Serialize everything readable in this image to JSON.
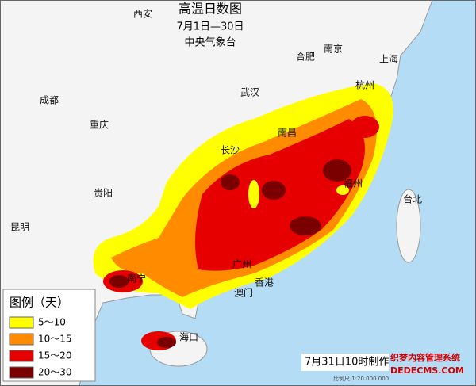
{
  "header": {
    "title": "高温日数图",
    "period": "7月1日—30日",
    "agency": "中央气象台"
  },
  "cities": [
    "西安",
    "合肥",
    "南京",
    "上海",
    "成都",
    "武汉",
    "杭州",
    "重庆",
    "南昌",
    "长沙",
    "福州",
    "台北",
    "贵阳",
    "昆明",
    "南宁",
    "广州",
    "香港",
    "澳门",
    "海口"
  ],
  "legend": {
    "title": "图例（天）",
    "items": [
      {
        "label": "5～10",
        "color": "#ffff00"
      },
      {
        "label": "10～15",
        "color": "#ff8c00"
      },
      {
        "label": "15～20",
        "color": "#e60000"
      },
      {
        "label": "20～30",
        "color": "#7a0000"
      }
    ]
  },
  "footer": {
    "made": "7月31日10时制作",
    "scale": "比例尺 1:20 000 000"
  },
  "watermark": {
    "line1": "织梦内容管理系统",
    "line2": "DEDECMS.COM"
  }
}
